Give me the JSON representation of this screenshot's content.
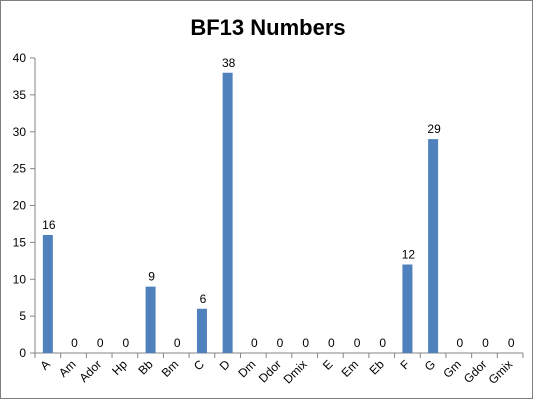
{
  "chart_data": {
    "type": "bar",
    "title": "BF13 Numbers",
    "xlabel": "",
    "ylabel": "",
    "categories": [
      "A",
      "Am",
      "Ador",
      "Hp",
      "Bb",
      "Bm",
      "C",
      "D",
      "Dm",
      "Ddor",
      "Dmix",
      "E",
      "Em",
      "Eb",
      "F",
      "G",
      "Gm",
      "Gdor",
      "Gmix"
    ],
    "values": [
      16,
      0,
      0,
      0,
      9,
      0,
      6,
      38,
      0,
      0,
      0,
      0,
      0,
      0,
      12,
      29,
      0,
      0,
      0
    ],
    "ylim": [
      0,
      40
    ],
    "yticks": [
      0,
      5,
      10,
      15,
      20,
      25,
      30,
      35,
      40
    ],
    "grid": false,
    "legend": "none",
    "bar_color": "#4f81bd"
  }
}
